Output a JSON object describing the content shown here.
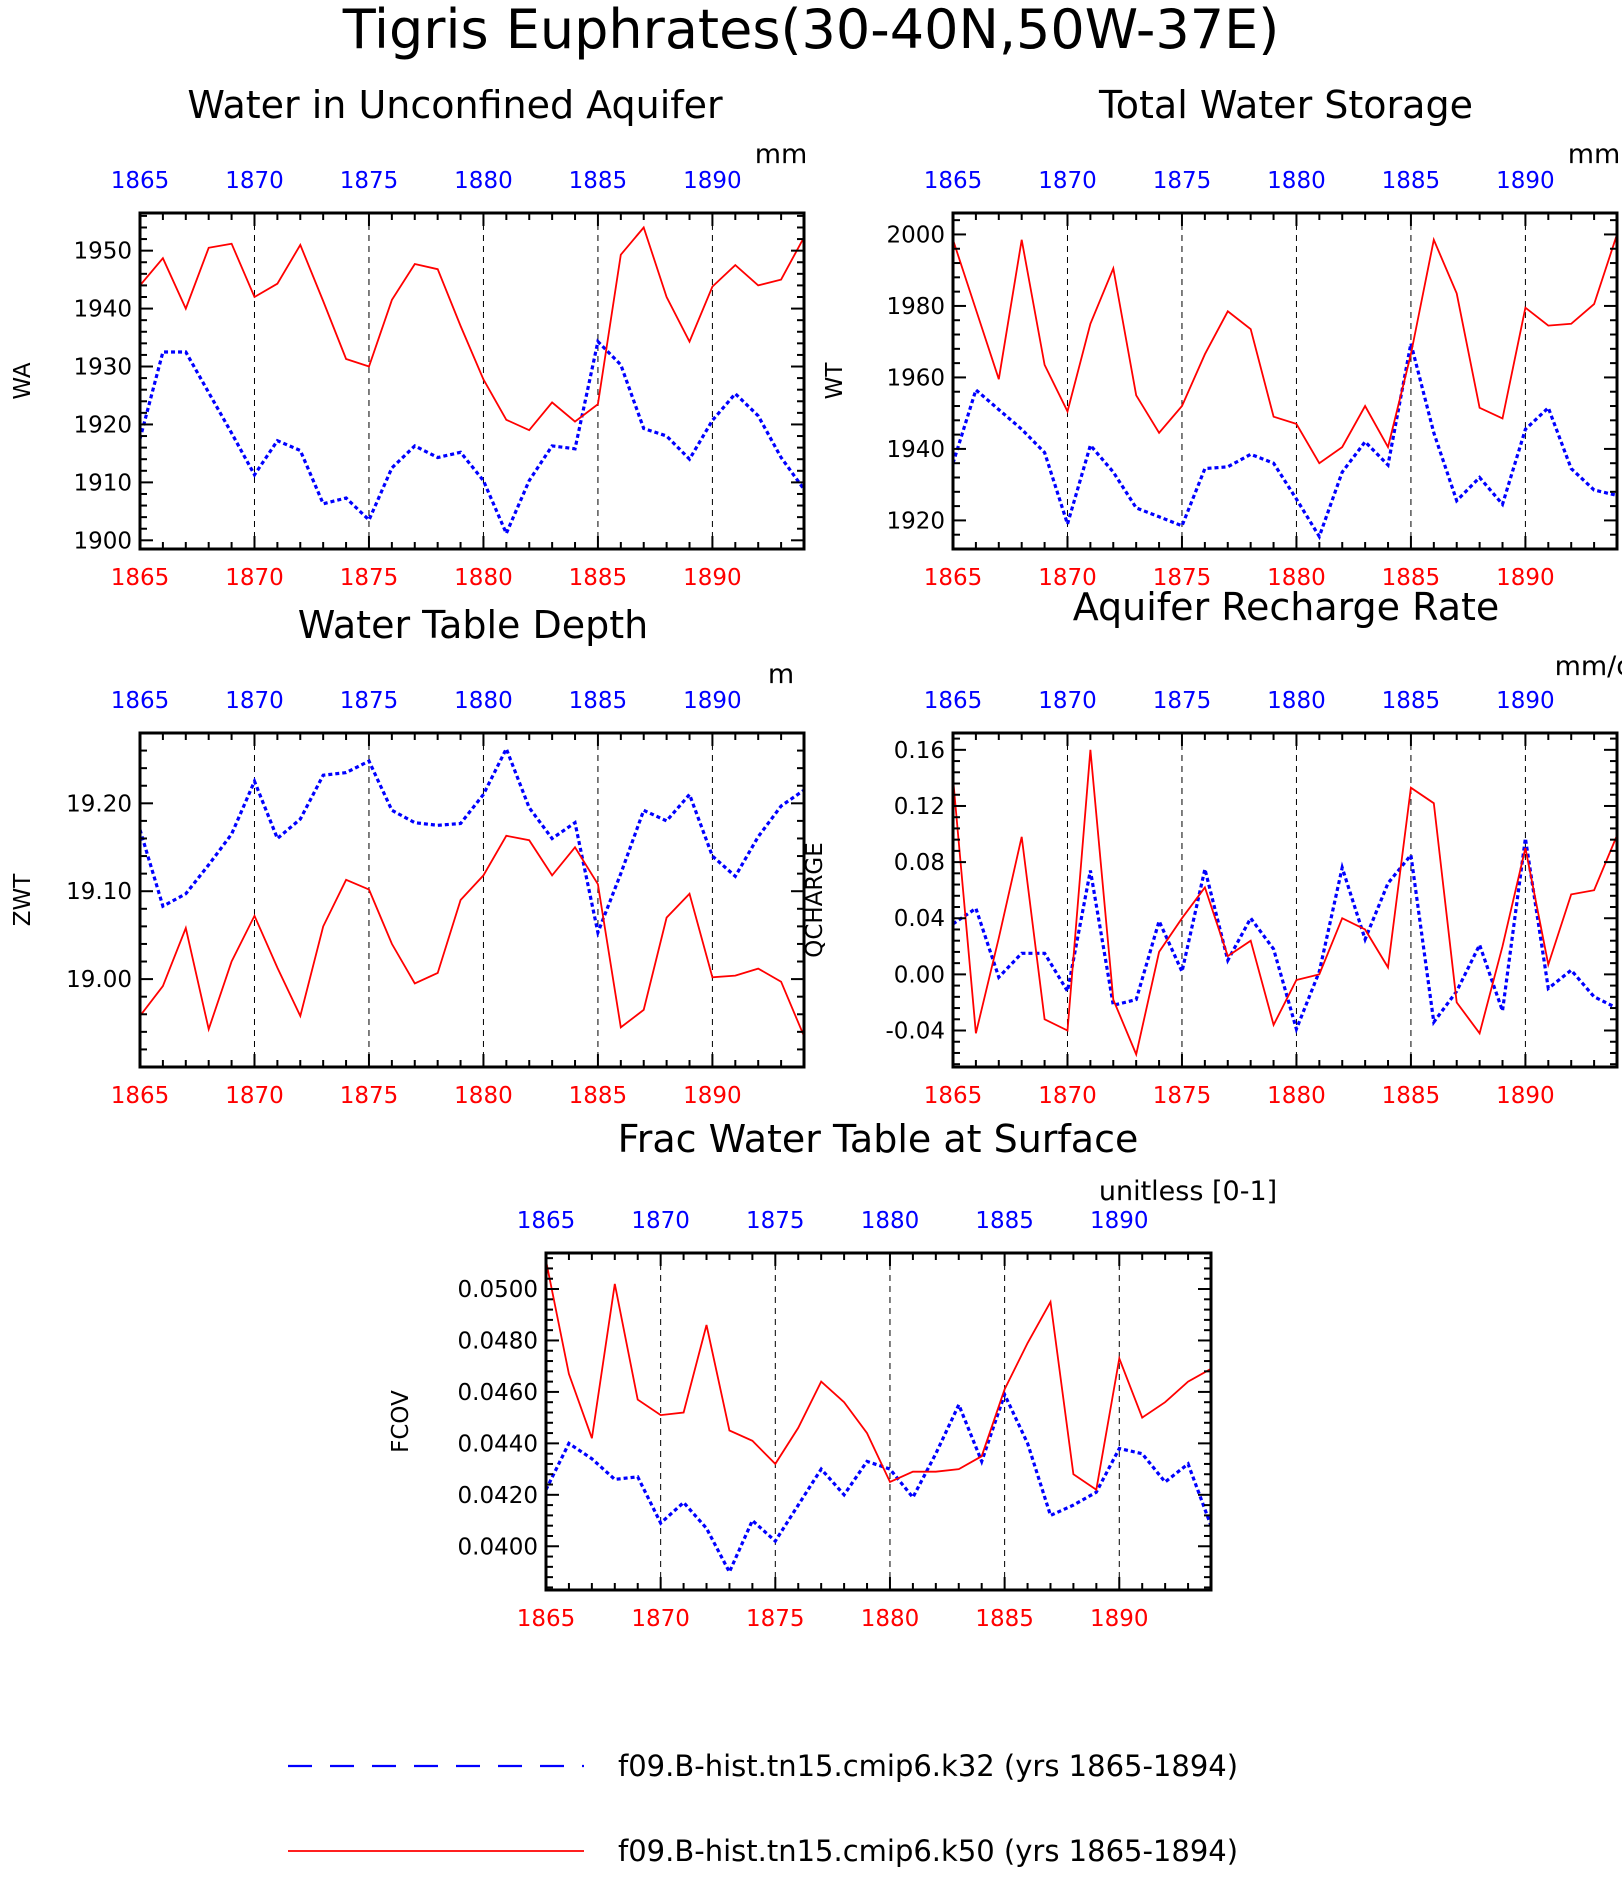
{
  "title": "Tigris Euphrates(30-40N,50W-37E)",
  "colors": {
    "k32": "#0000ff",
    "k50": "#ff0000",
    "top_ticks": "#0000ff",
    "bottom_ticks": "#ff0000"
  },
  "legend": [
    {
      "label": "f09.B-hist.tn15.cmip6.k32 (yrs 1865-1894)",
      "color": "#0000ff",
      "style": "dashed"
    },
    {
      "label": "f09.B-hist.tn15.cmip6.k50 (yrs 1865-1894)",
      "color": "#ff0000",
      "style": "solid"
    }
  ],
  "chart_data": [
    {
      "type": "line",
      "title": "Water in Unconfined Aquifer",
      "units": "mm",
      "ylabel": "WA",
      "x": [
        1865,
        1866,
        1867,
        1868,
        1869,
        1870,
        1871,
        1872,
        1873,
        1874,
        1875,
        1876,
        1877,
        1878,
        1879,
        1880,
        1881,
        1882,
        1883,
        1884,
        1885,
        1886,
        1887,
        1888,
        1889,
        1890,
        1891,
        1892,
        1893,
        1894
      ],
      "xlim": [
        1865,
        1894
      ],
      "xticks": [
        1865,
        1870,
        1875,
        1880,
        1885,
        1890
      ],
      "xtick_labels": [
        "1865",
        "1870",
        "1875",
        "1880",
        "1885",
        "1890"
      ],
      "ylim": [
        1898.5,
        1956.5
      ],
      "yticks": [
        1900,
        1910,
        1920,
        1930,
        1940,
        1950
      ],
      "ytick_labels": [
        "1900",
        "1910",
        "1920",
        "1930",
        "1940",
        "1950"
      ],
      "series": [
        {
          "name": "f09.B-hist.tn15.cmip6.k32",
          "style": "dashed",
          "values": [
            1917.5,
            1932.5,
            1932.5,
            1925.5,
            1918.5,
            1911.3,
            1917.2,
            1915.5,
            1906.3,
            1907.3,
            1903.5,
            1912.5,
            1916.3,
            1914.3,
            1915.2,
            1910.3,
            1901.2,
            1910.3,
            1916.3,
            1915.8,
            1934.3,
            1930.3,
            1919.3,
            1918.0,
            1914.0,
            1920.7,
            1925.3,
            1921.5,
            1914.3,
            1908.8
          ]
        },
        {
          "name": "f09.B-hist.tn15.cmip6.k50",
          "style": "solid",
          "values": [
            1944.0,
            1948.7,
            1940.0,
            1950.5,
            1951.2,
            1942.0,
            1944.3,
            1951.0,
            1941.3,
            1931.3,
            1930.0,
            1941.5,
            1947.7,
            1946.8,
            1937.0,
            1927.8,
            1920.8,
            1919.0,
            1923.8,
            1920.5,
            1923.5,
            1949.3,
            1954.0,
            1942.0,
            1934.3,
            1943.8,
            1947.5,
            1944.0,
            1945.0,
            1952.3
          ]
        }
      ]
    },
    {
      "type": "line",
      "title": "Total Water Storage",
      "units": "mm",
      "ylabel": "WT",
      "x": [
        1865,
        1866,
        1867,
        1868,
        1869,
        1870,
        1871,
        1872,
        1873,
        1874,
        1875,
        1876,
        1877,
        1878,
        1879,
        1880,
        1881,
        1882,
        1883,
        1884,
        1885,
        1886,
        1887,
        1888,
        1889,
        1890,
        1891,
        1892,
        1893,
        1894
      ],
      "xlim": [
        1865,
        1894
      ],
      "xticks": [
        1865,
        1870,
        1875,
        1880,
        1885,
        1890
      ],
      "xtick_labels": [
        "1865",
        "1870",
        "1875",
        "1880",
        "1885",
        "1890"
      ],
      "ylim": [
        1912,
        2006
      ],
      "yticks": [
        1920,
        1940,
        1960,
        1980,
        2000
      ],
      "ytick_labels": [
        "1920",
        "1940",
        "1960",
        "1980",
        "2000"
      ],
      "series": [
        {
          "name": "f09.B-hist.tn15.cmip6.k32",
          "style": "dashed",
          "values": [
            1936.0,
            1956.5,
            1951.0,
            1945.5,
            1939.0,
            1919.0,
            1941.0,
            1933.5,
            1923.5,
            1921.0,
            1918.5,
            1934.5,
            1935.0,
            1938.5,
            1936.0,
            1926.0,
            1915.5,
            1933.5,
            1942.0,
            1935.5,
            1969.5,
            1944.5,
            1925.5,
            1932.0,
            1924.5,
            1945.5,
            1951.5,
            1934.5,
            1928.5,
            1927.0
          ]
        },
        {
          "name": "f09.B-hist.tn15.cmip6.k50",
          "style": "solid",
          "values": [
            1998.5,
            1979.0,
            1959.5,
            1998.5,
            1963.5,
            1950.5,
            1975.0,
            1990.5,
            1955.0,
            1944.5,
            1952.0,
            1966.5,
            1978.5,
            1973.5,
            1949.0,
            1947.0,
            1936.0,
            1940.5,
            1952.0,
            1940.5,
            1966.5,
            1998.5,
            1983.5,
            1951.5,
            1948.5,
            1979.5,
            1974.5,
            1975.0,
            1980.5,
            2000.0
          ]
        }
      ]
    },
    {
      "type": "line",
      "title": "Water Table Depth",
      "units": "m",
      "ylabel": "ZWT",
      "x": [
        1865,
        1866,
        1867,
        1868,
        1869,
        1870,
        1871,
        1872,
        1873,
        1874,
        1875,
        1876,
        1877,
        1878,
        1879,
        1880,
        1881,
        1882,
        1883,
        1884,
        1885,
        1886,
        1887,
        1888,
        1889,
        1890,
        1891,
        1892,
        1893,
        1894
      ],
      "xlim": [
        1865,
        1894
      ],
      "xticks": [
        1865,
        1870,
        1875,
        1880,
        1885,
        1890
      ],
      "xtick_labels": [
        "1865",
        "1870",
        "1875",
        "1880",
        "1885",
        "1890"
      ],
      "ylim": [
        18.9,
        19.28
      ],
      "yticks": [
        19.0,
        19.1,
        19.2
      ],
      "ytick_labels": [
        "19.00",
        "19.10",
        "19.20"
      ],
      "series": [
        {
          "name": "f09.B-hist.tn15.cmip6.k32",
          "style": "dashed",
          "values": [
            19.17,
            19.083,
            19.097,
            19.13,
            19.165,
            19.225,
            19.16,
            19.182,
            19.232,
            19.235,
            19.248,
            19.192,
            19.178,
            19.175,
            19.177,
            19.21,
            19.262,
            19.195,
            19.16,
            19.178,
            19.053,
            19.12,
            19.192,
            19.18,
            19.21,
            19.14,
            19.117,
            19.162,
            19.197,
            19.215
          ]
        },
        {
          "name": "f09.B-hist.tn15.cmip6.k50",
          "style": "solid",
          "values": [
            18.958,
            18.992,
            19.058,
            18.943,
            19.02,
            19.072,
            19.013,
            18.958,
            19.06,
            19.113,
            19.102,
            19.04,
            18.995,
            19.007,
            19.09,
            19.118,
            19.163,
            19.158,
            19.118,
            19.15,
            19.108,
            18.945,
            18.965,
            19.07,
            19.097,
            19.002,
            19.004,
            19.012,
            18.997,
            18.935
          ]
        }
      ]
    },
    {
      "type": "line",
      "title": "Aquifer Recharge Rate",
      "units": "mm/d",
      "ylabel": "QCHARGE",
      "x": [
        1865,
        1866,
        1867,
        1868,
        1869,
        1870,
        1871,
        1872,
        1873,
        1874,
        1875,
        1876,
        1877,
        1878,
        1879,
        1880,
        1881,
        1882,
        1883,
        1884,
        1885,
        1886,
        1887,
        1888,
        1889,
        1890,
        1891,
        1892,
        1893,
        1894
      ],
      "xlim": [
        1865,
        1894
      ],
      "xticks": [
        1865,
        1870,
        1875,
        1880,
        1885,
        1890
      ],
      "xtick_labels": [
        "1865",
        "1870",
        "1875",
        "1880",
        "1885",
        "1890"
      ],
      "ylim": [
        -0.066,
        0.172
      ],
      "yticks": [
        -0.04,
        0.0,
        0.04,
        0.08,
        0.12,
        0.16
      ],
      "ytick_labels": [
        "-0.04",
        "0.00",
        "0.04",
        "0.08",
        "0.12",
        "0.16"
      ],
      "series": [
        {
          "name": "f09.B-hist.tn15.cmip6.k32",
          "style": "dashed",
          "values": [
            0.036,
            0.047,
            -0.002,
            0.015,
            0.015,
            -0.012,
            0.074,
            -0.022,
            -0.018,
            0.038,
            0.002,
            0.075,
            0.01,
            0.04,
            0.018,
            -0.039,
            0.002,
            0.076,
            0.025,
            0.065,
            0.085,
            -0.034,
            -0.012,
            0.021,
            -0.026,
            0.097,
            -0.01,
            0.003,
            -0.016,
            -0.024
          ]
        },
        {
          "name": "f09.B-hist.tn15.cmip6.k50",
          "style": "solid",
          "values": [
            0.14,
            -0.042,
            0.026,
            0.098,
            -0.032,
            -0.04,
            0.16,
            -0.018,
            -0.057,
            0.016,
            0.04,
            0.062,
            0.013,
            0.024,
            -0.036,
            -0.004,
            0.0,
            0.04,
            0.032,
            0.005,
            0.133,
            0.122,
            -0.02,
            -0.042,
            0.02,
            0.09,
            0.007,
            0.057,
            0.06,
            0.099
          ]
        }
      ]
    },
    {
      "type": "line",
      "title": "Frac Water Table at Surface",
      "units": "unitless [0-1]",
      "ylabel": "FCOV",
      "x": [
        1865,
        1866,
        1867,
        1868,
        1869,
        1870,
        1871,
        1872,
        1873,
        1874,
        1875,
        1876,
        1877,
        1878,
        1879,
        1880,
        1881,
        1882,
        1883,
        1884,
        1885,
        1886,
        1887,
        1888,
        1889,
        1890,
        1891,
        1892,
        1893,
        1894
      ],
      "xlim": [
        1865,
        1894
      ],
      "xticks": [
        1865,
        1870,
        1875,
        1880,
        1885,
        1890
      ],
      "xtick_labels": [
        "1865",
        "1870",
        "1875",
        "1880",
        "1885",
        "1890"
      ],
      "ylim": [
        0.0383,
        0.0514
      ],
      "yticks": [
        0.04,
        0.042,
        0.044,
        0.046,
        0.048,
        0.05
      ],
      "ytick_labels": [
        "0.0400",
        "0.0420",
        "0.0440",
        "0.0460",
        "0.0480",
        "0.0500"
      ],
      "series": [
        {
          "name": "f09.B-hist.tn15.cmip6.k32",
          "style": "dashed",
          "values": [
            0.0422,
            0.044,
            0.0434,
            0.0426,
            0.0427,
            0.0409,
            0.0417,
            0.0407,
            0.039,
            0.041,
            0.0402,
            0.0416,
            0.043,
            0.042,
            0.0433,
            0.043,
            0.0419,
            0.0436,
            0.0455,
            0.0433,
            0.0459,
            0.044,
            0.0412,
            0.0416,
            0.0421,
            0.0438,
            0.0436,
            0.0425,
            0.0432,
            0.0408
          ]
        },
        {
          "name": "f09.B-hist.tn15.cmip6.k50",
          "style": "solid",
          "values": [
            0.0511,
            0.0467,
            0.0442,
            0.0502,
            0.0457,
            0.0451,
            0.0452,
            0.0486,
            0.0445,
            0.0441,
            0.0432,
            0.0446,
            0.0464,
            0.0456,
            0.0444,
            0.0425,
            0.0429,
            0.0429,
            0.043,
            0.0435,
            0.0461,
            0.0479,
            0.0495,
            0.0428,
            0.0422,
            0.0473,
            0.045,
            0.0456,
            0.0464,
            0.0469
          ]
        }
      ]
    }
  ]
}
